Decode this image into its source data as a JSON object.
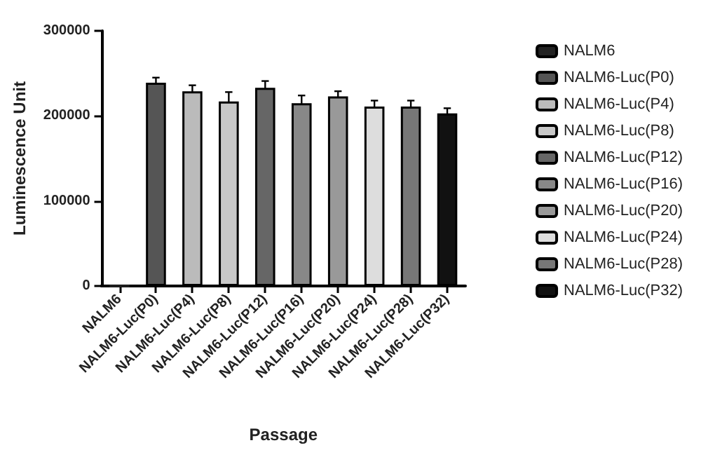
{
  "chart_data": {
    "type": "bar",
    "xlabel": "Passage",
    "ylabel": "Luminescence Unit",
    "categories": [
      "NALM6",
      "NALM6-Luc(P0)",
      "NALM6-Luc(P4)",
      "NALM6-Luc(P8)",
      "NALM6-Luc(P12)",
      "NALM6-Luc(P16)",
      "NALM6-Luc(P20)",
      "NALM6-Luc(P24)",
      "NALM6-Luc(P28)",
      "NALM6-Luc(P32)"
    ],
    "series": [
      {
        "name": "NALM6",
        "color": "#222222",
        "values": [
          0,
          null,
          null,
          null,
          null,
          null,
          null,
          null,
          null,
          null
        ]
      },
      {
        "name": "NALM6-Luc(P0)",
        "color": "#555555",
        "values": [
          null,
          239000,
          null,
          null,
          null,
          null,
          null,
          null,
          null,
          null
        ],
        "errors": [
          null,
          6000,
          null,
          null,
          null,
          null,
          null,
          null,
          null,
          null
        ]
      },
      {
        "name": "NALM6-Luc(P4)",
        "color": "#bbbbbb",
        "values": [
          null,
          null,
          229000,
          null,
          null,
          null,
          null,
          null,
          null,
          null
        ],
        "errors": [
          null,
          null,
          7000,
          null,
          null,
          null,
          null,
          null,
          null,
          null
        ]
      },
      {
        "name": "NALM6-Luc(P8)",
        "color": "#c8c8c8",
        "values": [
          null,
          null,
          null,
          217000,
          null,
          null,
          null,
          null,
          null,
          null
        ],
        "errors": [
          null,
          null,
          null,
          11000,
          null,
          null,
          null,
          null,
          null,
          null
        ]
      },
      {
        "name": "NALM6-Luc(P12)",
        "color": "#666666",
        "values": [
          null,
          null,
          null,
          null,
          233000,
          null,
          null,
          null,
          null,
          null
        ],
        "errors": [
          null,
          null,
          null,
          null,
          8000,
          null,
          null,
          null,
          null,
          null
        ]
      },
      {
        "name": "NALM6-Luc(P16)",
        "color": "#888888",
        "values": [
          null,
          null,
          null,
          null,
          null,
          215000,
          null,
          null,
          null,
          null
        ],
        "errors": [
          null,
          null,
          null,
          null,
          null,
          9000,
          null,
          null,
          null,
          null
        ]
      },
      {
        "name": "NALM6-Luc(P20)",
        "color": "#999999",
        "values": [
          null,
          null,
          null,
          null,
          null,
          null,
          223000,
          null,
          null,
          null
        ],
        "errors": [
          null,
          null,
          null,
          null,
          null,
          null,
          6000,
          null,
          null,
          null
        ]
      },
      {
        "name": "NALM6-Luc(P24)",
        "color": "#dddddd",
        "values": [
          null,
          null,
          null,
          null,
          null,
          null,
          null,
          211000,
          null,
          null
        ],
        "errors": [
          null,
          null,
          null,
          null,
          null,
          null,
          null,
          7000,
          null,
          null
        ]
      },
      {
        "name": "NALM6-Luc(P28)",
        "color": "#777777",
        "values": [
          null,
          null,
          null,
          null,
          null,
          null,
          null,
          null,
          211000,
          null
        ],
        "errors": [
          null,
          null,
          null,
          null,
          null,
          null,
          null,
          null,
          7000,
          null
        ]
      },
      {
        "name": "NALM6-Luc(P32)",
        "color": "#111111",
        "values": [
          null,
          null,
          null,
          null,
          null,
          null,
          null,
          null,
          null,
          203000
        ],
        "errors": [
          null,
          null,
          null,
          null,
          null,
          null,
          null,
          null,
          null,
          6000
        ]
      }
    ],
    "ylim": [
      0,
      300000
    ],
    "yticks": [
      0,
      100000,
      200000,
      300000
    ],
    "legend": "right",
    "grid": false
  }
}
